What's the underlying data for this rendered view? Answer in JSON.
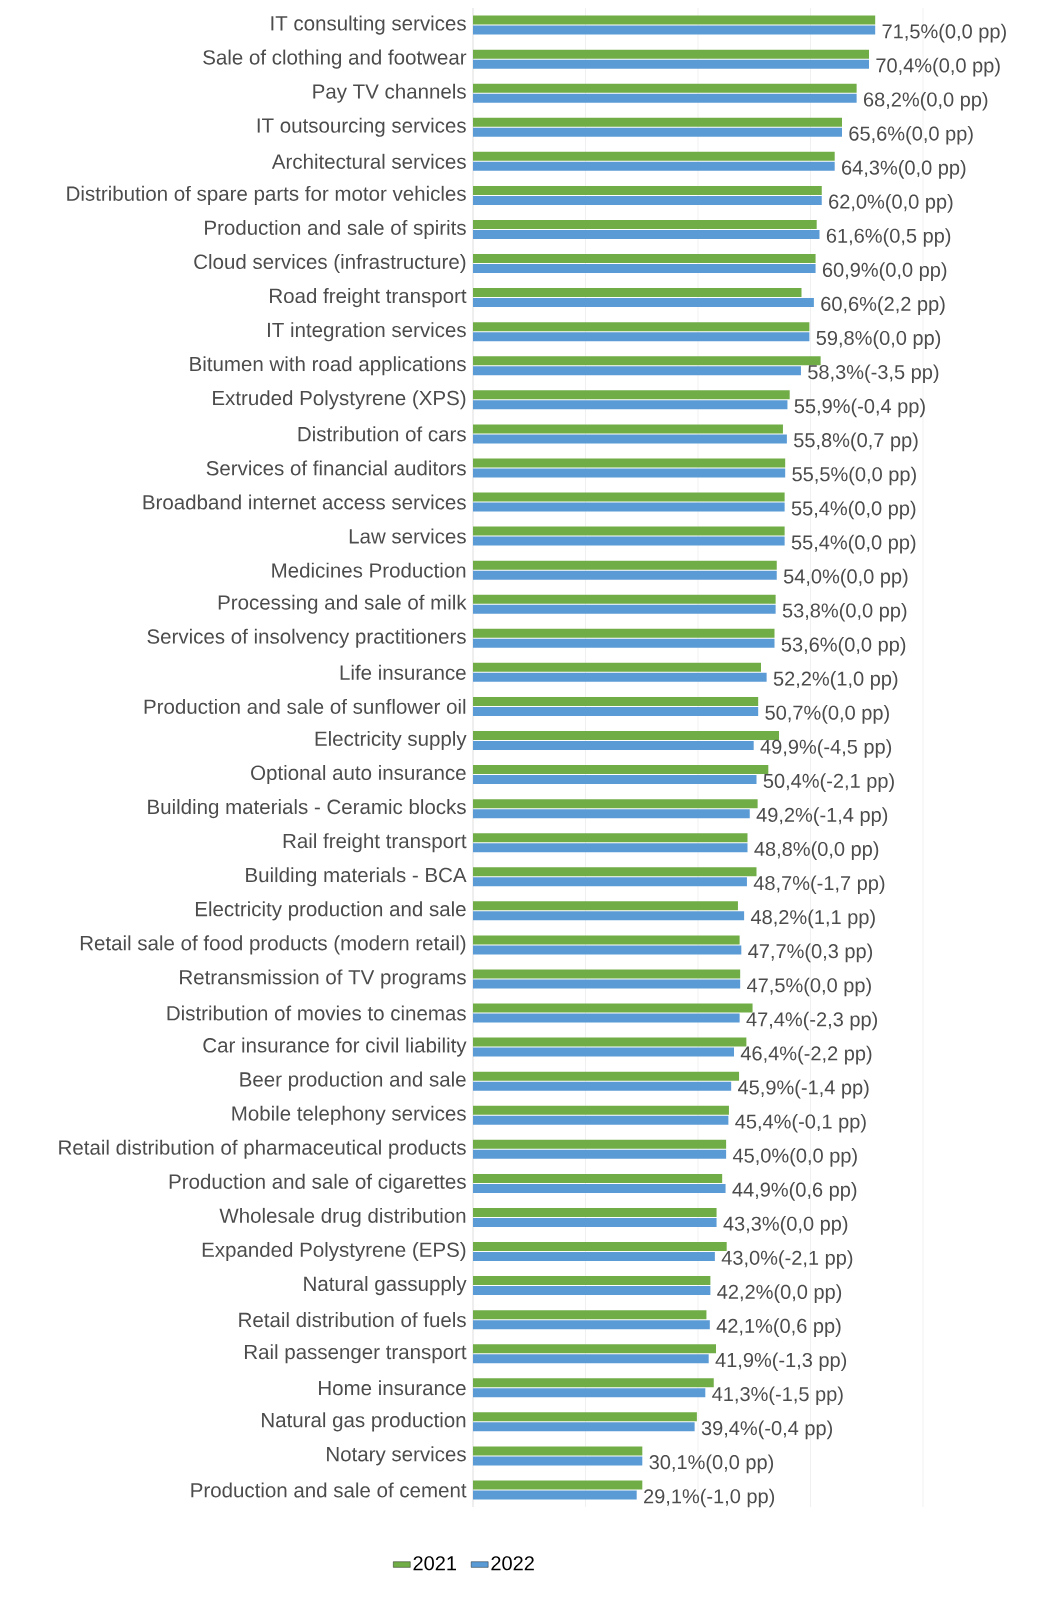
{
  "chart_data": {
    "type": "bar",
    "orientation": "horizontal",
    "categories": [
      "IT consulting services",
      "Sale of clothing and footwear",
      "Pay TV channels",
      "IT outsourcing services",
      "Architectural services",
      "Distribution of spare parts for motor vehicles",
      "Production and sale of spirits",
      "Cloud services (infrastructure)",
      "Road freight transport",
      "IT integration services",
      "Bitumen with road applications",
      "Extruded Polystyrene (XPS)",
      "Distribution of cars",
      "Services of financial auditors",
      "Broadband internet access services",
      "Law services",
      "Medicines Production",
      "Processing and sale of milk",
      "Services of insolvency practitioners",
      "Life insurance",
      "Production and sale of sunflower oil",
      "Electricity supply",
      "Optional auto insurance",
      "Building materials - Ceramic blocks",
      "Rail freight transport",
      "Building materials - BCA",
      "Electricity production and sale",
      "Retail sale of food products (modern retail)",
      "Retransmission of TV programs",
      "Distribution of movies to cinemas",
      "Car insurance for civil liability",
      "Beer production and sale",
      "Mobile telephony services",
      "Retail distribution of pharmaceutical products",
      "Production and sale of cigarettes",
      "Wholesale drug distribution",
      "Expanded Polystyrene (EPS)",
      "Natural gassupply",
      "Retail distribution of fuels",
      "Rail passenger transport",
      "Home insurance",
      "Natural gas production",
      "Notary services",
      "Production and sale of cement"
    ],
    "series": [
      {
        "name": "2021",
        "color": "#70ad47",
        "values": [
          71.5,
          70.4,
          68.2,
          65.6,
          64.3,
          62.0,
          61.1,
          60.9,
          58.4,
          59.8,
          61.8,
          56.3,
          55.1,
          55.5,
          55.4,
          55.4,
          54.0,
          53.8,
          53.6,
          51.2,
          50.7,
          54.4,
          52.5,
          50.6,
          48.8,
          50.4,
          47.1,
          47.4,
          47.5,
          49.7,
          48.6,
          47.3,
          45.5,
          45.0,
          44.3,
          43.3,
          45.1,
          42.2,
          41.5,
          43.2,
          42.8,
          39.8,
          30.1,
          30.1
        ]
      },
      {
        "name": "2022",
        "color": "#5b9bd5",
        "values": [
          71.5,
          70.4,
          68.2,
          65.6,
          64.3,
          62.0,
          61.6,
          60.9,
          60.6,
          59.8,
          58.3,
          55.9,
          55.8,
          55.5,
          55.4,
          55.4,
          54.0,
          53.8,
          53.6,
          52.2,
          50.7,
          49.9,
          50.4,
          49.2,
          48.8,
          48.7,
          48.2,
          47.7,
          47.5,
          47.4,
          46.4,
          45.9,
          45.4,
          45.0,
          44.9,
          43.3,
          43.0,
          42.2,
          42.1,
          41.9,
          41.3,
          39.4,
          30.1,
          29.1
        ],
        "value_labels": [
          "71,5%(0,0 pp)",
          "70,4%(0,0 pp)",
          "68,2%(0,0 pp)",
          "65,6%(0,0 pp)",
          "64,3%(0,0 pp)",
          "62,0%(0,0 pp)",
          "61,6%(0,5 pp)",
          "60,9%(0,0 pp)",
          "60,6%(2,2 pp)",
          "59,8%(0,0 pp)",
          "58,3%(-3,5 pp)",
          "55,9%(-0,4 pp)",
          "55,8%(0,7 pp)",
          "55,5%(0,0 pp)",
          "55,4%(0,0 pp)",
          "55,4%(0,0 pp)",
          "54,0%(0,0 pp)",
          "53,8%(0,0 pp)",
          "53,6%(0,0 pp)",
          "52,2%(1,0 pp)",
          "50,7%(0,0 pp)",
          "49,9%(-4,5 pp)",
          "50,4%(-2,1 pp)",
          "49,2%(-1,4 pp)",
          "48,8%(0,0 pp)",
          "48,7%(-1,7 pp)",
          "48,2%(1,1 pp)",
          "47,7%(0,3 pp)",
          "47,5%(0,0 pp)",
          "47,4%(-2,3 pp)",
          "46,4%(-2,2 pp)",
          "45,9%(-1,4 pp)",
          "45,4%(-0,1 pp)",
          "45,0%(0,0 pp)",
          "44,9%(0,6 pp)",
          "43,3%(0,0 pp)",
          "43,0%(-2,1 pp)",
          "42,2%(0,0 pp)",
          "42,1%(0,6 pp)",
          "41,9%(-1,3 pp)",
          "41,3%(-1,5 pp)",
          "39,4%(-0,4 pp)",
          "30,1%(0,0 pp)",
          "29,1%(-1,0 pp)"
        ]
      }
    ],
    "xlim": [
      0,
      80
    ],
    "xticks": [
      {
        "value": 20,
        "label": null
      },
      {
        "value": 40,
        "label": null
      },
      {
        "value": 60,
        "label": null
      },
      {
        "value": 80,
        "label": null
      }
    ],
    "tick_labels": "y",
    "grid": "x",
    "legend": "bottom"
  }
}
